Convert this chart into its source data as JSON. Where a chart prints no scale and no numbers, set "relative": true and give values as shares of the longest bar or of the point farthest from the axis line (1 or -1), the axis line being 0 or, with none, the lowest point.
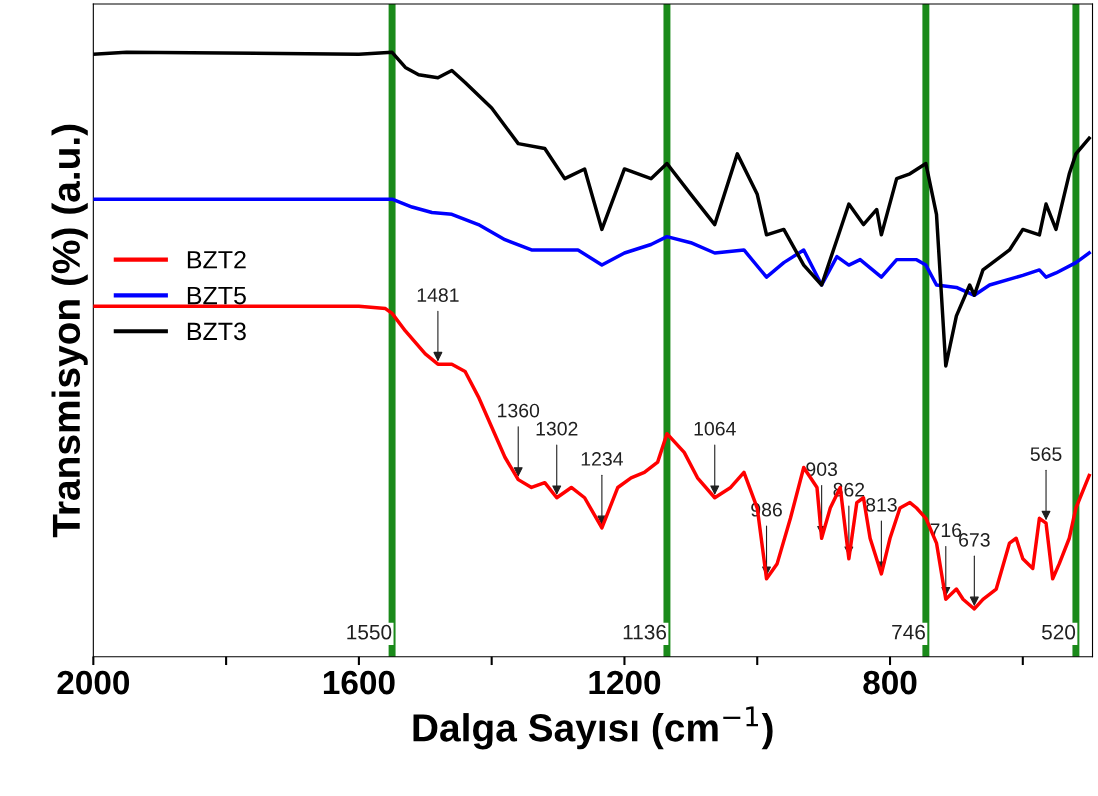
{
  "chart_data": {
    "type": "line",
    "relative": true,
    "xlabel": "Dalga Sayısı (cm$^{−1}$)",
    "ylabel": "Transmisyon (%) (a.u.)",
    "xlim": [
      2000,
      495
    ],
    "xticks": [
      2000,
      {
        "value": 1800,
        "label": null
      },
      1600,
      {
        "value": 1400,
        "label": null
      },
      1200,
      {
        "value": 1000,
        "label": null
      },
      800,
      {
        "value": 600,
        "label": null
      }
    ],
    "tick_labels": "x",
    "grid": false,
    "legend": "left",
    "marker": "none",
    "line_style": "solid",
    "series": [
      {
        "name": "BZT2",
        "color": "#ff0000",
        "x": [
          2000,
          1600,
          1560,
          1550,
          1530,
          1500,
          1481,
          1460,
          1440,
          1420,
          1400,
          1380,
          1360,
          1340,
          1320,
          1302,
          1280,
          1260,
          1234,
          1210,
          1190,
          1170,
          1150,
          1136,
          1110,
          1090,
          1064,
          1040,
          1020,
          1000,
          986,
          970,
          950,
          930,
          910,
          903,
          890,
          875,
          862,
          850,
          840,
          830,
          813,
          800,
          785,
          770,
          760,
          746,
          730,
          716,
          700,
          690,
          673,
          660,
          640,
          620,
          610,
          600,
          585,
          575,
          565,
          555,
          545,
          530,
          520,
          500
        ],
        "values": [
          0.58,
          0.58,
          0.576,
          0.568,
          0.539,
          0.501,
          0.484,
          0.484,
          0.472,
          0.43,
          0.38,
          0.33,
          0.293,
          0.28,
          0.288,
          0.263,
          0.28,
          0.263,
          0.213,
          0.28,
          0.296,
          0.305,
          0.322,
          0.369,
          0.338,
          0.296,
          0.263,
          0.28,
          0.305,
          0.246,
          0.129,
          0.154,
          0.229,
          0.313,
          0.28,
          0.196,
          0.246,
          0.28,
          0.162,
          0.255,
          0.263,
          0.196,
          0.137,
          0.196,
          0.246,
          0.255,
          0.246,
          0.229,
          0.188,
          0.095,
          0.112,
          0.095,
          0.079,
          0.095,
          0.112,
          0.188,
          0.196,
          0.162,
          0.146,
          0.229,
          0.221,
          0.129,
          0.154,
          0.196,
          0.246,
          0.3
        ]
      },
      {
        "name": "BZT5",
        "color": "#0000ff",
        "x": [
          2000,
          1600,
          1550,
          1520,
          1490,
          1460,
          1420,
          1380,
          1340,
          1302,
          1270,
          1234,
          1200,
          1160,
          1136,
          1100,
          1064,
          1020,
          986,
          960,
          930,
          903,
          880,
          862,
          845,
          813,
          790,
          760,
          746,
          730,
          700,
          673,
          650,
          600,
          575,
          565,
          550,
          520,
          500
        ],
        "values": [
          0.757,
          0.757,
          0.757,
          0.744,
          0.735,
          0.732,
          0.715,
          0.69,
          0.673,
          0.673,
          0.673,
          0.648,
          0.668,
          0.682,
          0.695,
          0.685,
          0.668,
          0.673,
          0.628,
          0.652,
          0.673,
          0.615,
          0.662,
          0.648,
          0.657,
          0.628,
          0.657,
          0.657,
          0.648,
          0.615,
          0.611,
          0.598,
          0.615,
          0.631,
          0.64,
          0.628,
          0.635,
          0.652,
          0.668
        ]
      },
      {
        "name": "BZT3",
        "color": "#000000",
        "x": [
          2000,
          1950,
          1600,
          1550,
          1530,
          1510,
          1481,
          1460,
          1440,
          1400,
          1360,
          1320,
          1290,
          1260,
          1234,
          1200,
          1160,
          1136,
          1100,
          1064,
          1030,
          1000,
          986,
          960,
          930,
          903,
          880,
          862,
          840,
          820,
          813,
          790,
          770,
          746,
          730,
          716,
          700,
          680,
          673,
          660,
          620,
          600,
          575,
          565,
          550,
          530,
          520,
          500
        ],
        "values": [
          0.997,
          1.0,
          0.997,
          1.0,
          0.975,
          0.963,
          0.958,
          0.97,
          0.95,
          0.908,
          0.849,
          0.841,
          0.791,
          0.807,
          0.707,
          0.807,
          0.791,
          0.816,
          0.765,
          0.715,
          0.832,
          0.765,
          0.698,
          0.707,
          0.648,
          0.615,
          0.69,
          0.749,
          0.715,
          0.74,
          0.698,
          0.791,
          0.799,
          0.816,
          0.732,
          0.481,
          0.564,
          0.615,
          0.598,
          0.64,
          0.673,
          0.707,
          0.698,
          0.749,
          0.707,
          0.799,
          0.832,
          0.858
        ]
      }
    ],
    "ref_lines": [
      {
        "axis": "x",
        "value": 1550,
        "label": "1550",
        "color": "#1a8a1a"
      },
      {
        "axis": "x",
        "value": 1136,
        "label": "1136",
        "color": "#1a8a1a"
      },
      {
        "axis": "x",
        "value": 746,
        "label": "746",
        "color": "#1a8a1a"
      },
      {
        "axis": "x",
        "value": 520,
        "label": "520",
        "color": "#1a8a1a"
      }
    ],
    "annotations": [
      {
        "text": "1481",
        "x": 1481,
        "y": 0.484
      },
      {
        "text": "1360",
        "x": 1360,
        "y": 0.293
      },
      {
        "text": "1302",
        "x": 1302,
        "y": 0.263
      },
      {
        "text": "1234",
        "x": 1234,
        "y": 0.213
      },
      {
        "text": "1064",
        "x": 1064,
        "y": 0.263
      },
      {
        "text": "986",
        "x": 986,
        "y": 0.129
      },
      {
        "text": "903",
        "x": 903,
        "y": 0.196
      },
      {
        "text": "862",
        "x": 862,
        "y": 0.162
      },
      {
        "text": "813",
        "x": 813,
        "y": 0.137
      },
      {
        "text": "716",
        "x": 716,
        "y": 0.095
      },
      {
        "text": "673",
        "x": 673,
        "y": 0.079
      },
      {
        "text": "565",
        "x": 565,
        "y": 0.221
      }
    ]
  }
}
